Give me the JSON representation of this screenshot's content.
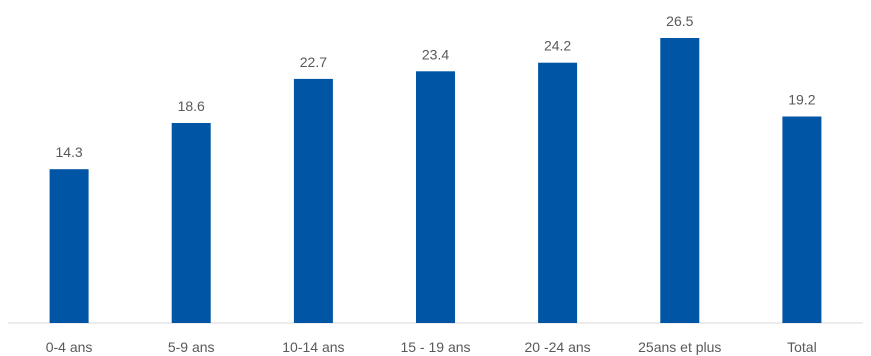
{
  "chart_data": {
    "type": "bar",
    "categories": [
      "0-4 ans",
      "5-9 ans",
      "10-14 ans",
      "15 - 19 ans",
      "20 -24 ans",
      "25ans et plus",
      "Total"
    ],
    "values": [
      14.3,
      18.6,
      22.7,
      23.4,
      24.2,
      26.5,
      19.2
    ],
    "data_labels": [
      "14.3",
      "18.6",
      "22.7",
      "23.4",
      "24.2",
      "26.5",
      "19.2"
    ],
    "title": "",
    "xlabel": "",
    "ylabel": "",
    "ylim": [
      0,
      26.5
    ],
    "grid": false,
    "legend": "none",
    "colors": {
      "bar": "#0055A4",
      "axis": "#D9D9D9",
      "text": "#595959"
    }
  }
}
